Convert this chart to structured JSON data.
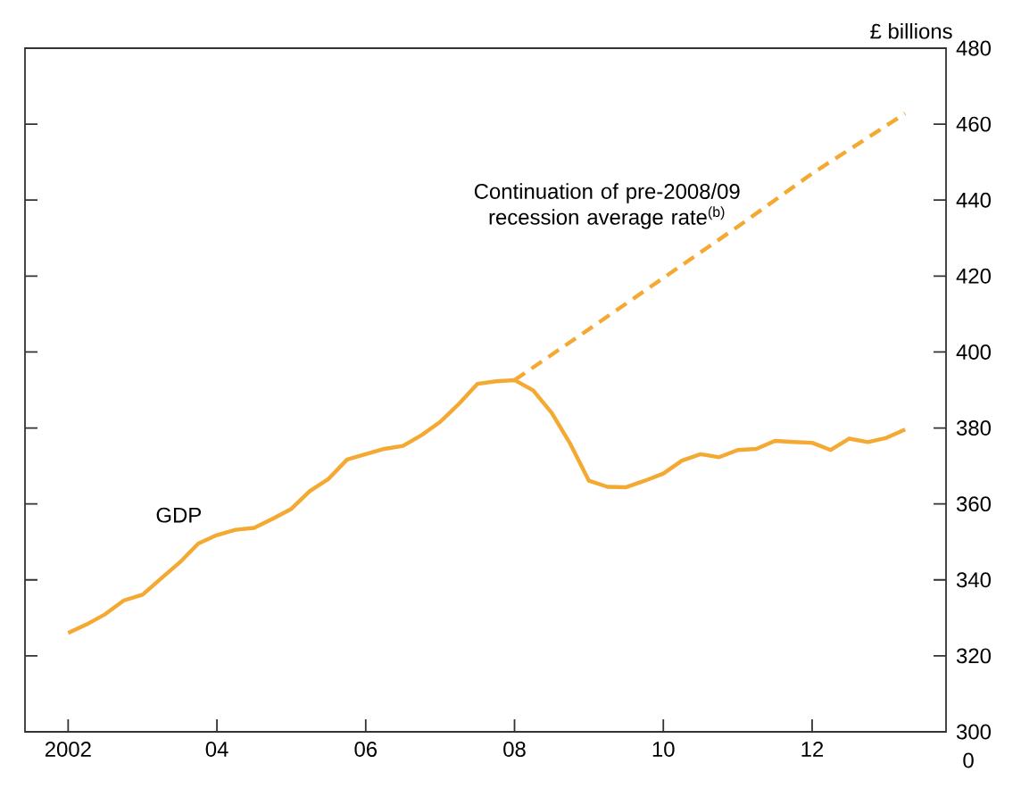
{
  "chart_data": {
    "type": "line",
    "ylabel": "£ billions",
    "xlim": [
      2001.42,
      2013.8
    ],
    "xticks": [
      2002,
      {
        "value": 2004,
        "label": "04"
      },
      {
        "value": 2006,
        "label": "06"
      },
      {
        "value": 2008,
        "label": "08"
      },
      {
        "value": 2010,
        "label": "10"
      },
      {
        "value": 2012,
        "label": "12"
      }
    ],
    "ylim": [
      300,
      480
    ],
    "yticks": [
      300,
      320,
      340,
      360,
      380,
      400,
      420,
      440,
      460,
      480
    ],
    "grid": false,
    "legend": false,
    "marker": "none",
    "series": [
      {
        "name": "GDP",
        "color": "#f4a932",
        "line_style": "solid",
        "x": [
          2002.0,
          2002.25,
          2002.5,
          2002.75,
          2003.0,
          2003.25,
          2003.5,
          2003.75,
          2004.0,
          2004.25,
          2004.5,
          2004.75,
          2005.0,
          2005.25,
          2005.5,
          2005.75,
          2006.0,
          2006.25,
          2006.5,
          2006.75,
          2007.0,
          2007.25,
          2007.5,
          2007.75,
          2008.0,
          2008.25,
          2008.5,
          2008.75,
          2009.0,
          2009.25,
          2009.5,
          2009.75,
          2010.0,
          2010.25,
          2010.5,
          2010.75,
          2011.0,
          2011.25,
          2011.5,
          2011.75,
          2012.0,
          2012.25,
          2012.5,
          2012.75,
          2013.0,
          2013.25
        ],
        "values": [
          326.0,
          328.3,
          331.0,
          334.6,
          336.1,
          340.4,
          344.6,
          349.6,
          351.8,
          353.2,
          353.7,
          356.1,
          358.7,
          363.4,
          366.6,
          371.7,
          373.1,
          374.5,
          375.3,
          378.1,
          381.6,
          386.3,
          391.6,
          392.3,
          392.6,
          389.9,
          384.0,
          375.8,
          366.1,
          364.5,
          364.4,
          366.1,
          368.0,
          371.4,
          373.1,
          372.3,
          374.2,
          374.5,
          376.6,
          376.3,
          376.1,
          374.2,
          377.2,
          376.3,
          377.4,
          379.6
        ]
      },
      {
        "name": "Continuation of pre-2008/09 recession average rate$^{(b)}$",
        "color": "#f4a932",
        "line_style": "dashed",
        "x": [
          2008.0,
          2009.0,
          2010.0,
          2011.0,
          2012.0,
          2013.25
        ],
        "values": [
          392.6,
          406.0,
          419.5,
          433.0,
          447.0,
          462.8
        ]
      }
    ],
    "annotations": [
      "0"
    ]
  }
}
